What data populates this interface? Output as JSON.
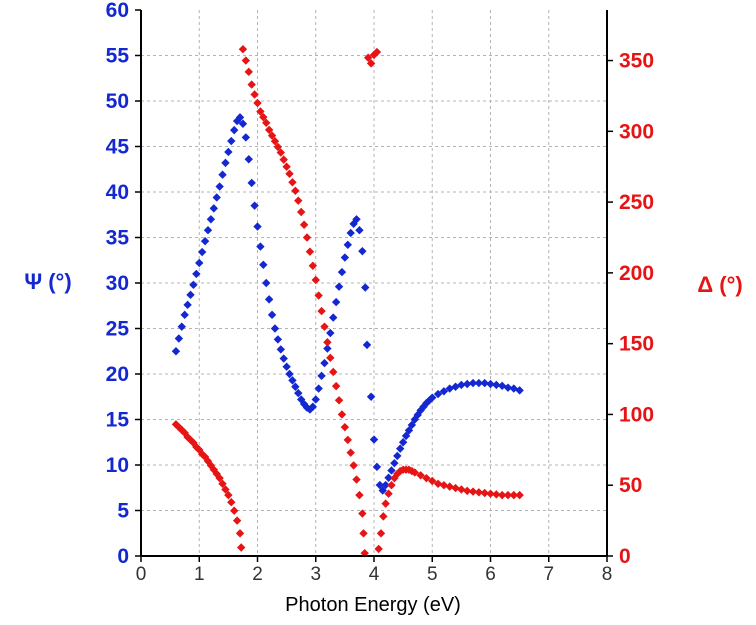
{
  "chart_data": {
    "type": "scatter",
    "xlabel": "Photon Energy (eV)",
    "ylabel_left": "Ψ (°)",
    "ylabel_right": "Δ (°)",
    "xlim": [
      0,
      8
    ],
    "ylim_left": [
      0,
      60
    ],
    "ylim_right": [
      0,
      385.7
    ],
    "x_ticks": [
      0,
      1,
      2,
      3,
      4,
      5,
      6,
      7,
      8
    ],
    "y_ticks_left": [
      0,
      5,
      10,
      15,
      20,
      25,
      30,
      35,
      40,
      45,
      50,
      55,
      60
    ],
    "y_ticks_right": [
      0,
      50,
      100,
      150,
      200,
      250,
      300,
      350
    ],
    "grid": true,
    "colors": {
      "psi": "#1428d2",
      "delta": "#e61414",
      "axis": "#000000",
      "grid": "#b4b4b4"
    },
    "series": [
      {
        "axis": "left",
        "color": "#1428d2",
        "points": [
          [
            0.6,
            22.5
          ],
          [
            0.65,
            23.9
          ],
          [
            0.7,
            25.2
          ],
          [
            0.75,
            26.5
          ],
          [
            0.8,
            27.6
          ],
          [
            0.85,
            28.7
          ],
          [
            0.9,
            29.8
          ],
          [
            0.95,
            31.0
          ],
          [
            1.0,
            32.2
          ],
          [
            1.05,
            33.4
          ],
          [
            1.1,
            34.6
          ],
          [
            1.15,
            35.8
          ],
          [
            1.2,
            37.0
          ],
          [
            1.25,
            38.2
          ],
          [
            1.3,
            39.4
          ],
          [
            1.35,
            40.6
          ],
          [
            1.4,
            41.9
          ],
          [
            1.45,
            43.2
          ],
          [
            1.5,
            44.4
          ],
          [
            1.55,
            45.6
          ],
          [
            1.6,
            46.8
          ],
          [
            1.65,
            47.8
          ],
          [
            1.7,
            48.2
          ],
          [
            1.75,
            47.5
          ],
          [
            1.8,
            46.0
          ],
          [
            1.85,
            43.6
          ],
          [
            1.9,
            41.0
          ],
          [
            1.95,
            38.5
          ],
          [
            2.0,
            36.2
          ],
          [
            2.05,
            34.0
          ],
          [
            2.1,
            32.0
          ],
          [
            2.15,
            30.0
          ],
          [
            2.2,
            28.2
          ],
          [
            2.25,
            26.5
          ],
          [
            2.3,
            25.0
          ],
          [
            2.35,
            23.8
          ],
          [
            2.4,
            22.7
          ],
          [
            2.45,
            21.7
          ],
          [
            2.5,
            20.8
          ],
          [
            2.55,
            20.0
          ],
          [
            2.6,
            19.3
          ],
          [
            2.65,
            18.6
          ],
          [
            2.7,
            17.9
          ],
          [
            2.75,
            17.2
          ],
          [
            2.8,
            16.7
          ],
          [
            2.85,
            16.3
          ],
          [
            2.9,
            16.1
          ],
          [
            2.95,
            16.4
          ],
          [
            3.0,
            17.2
          ],
          [
            3.05,
            18.4
          ],
          [
            3.1,
            19.8
          ],
          [
            3.15,
            21.2
          ],
          [
            3.2,
            22.8
          ],
          [
            3.25,
            24.5
          ],
          [
            3.3,
            26.2
          ],
          [
            3.35,
            27.9
          ],
          [
            3.4,
            29.6
          ],
          [
            3.45,
            31.2
          ],
          [
            3.5,
            32.8
          ],
          [
            3.55,
            34.2
          ],
          [
            3.6,
            35.5
          ],
          [
            3.65,
            36.5
          ],
          [
            3.7,
            37.0
          ],
          [
            3.75,
            35.8
          ],
          [
            3.8,
            33.5
          ],
          [
            3.85,
            29.5
          ],
          [
            3.88,
            23.2
          ],
          [
            3.95,
            17.5
          ],
          [
            4.0,
            12.8
          ],
          [
            4.05,
            9.8
          ],
          [
            4.1,
            7.8
          ],
          [
            4.15,
            7.2
          ],
          [
            4.2,
            7.8
          ],
          [
            4.25,
            8.6
          ],
          [
            4.3,
            9.4
          ],
          [
            4.35,
            10.2
          ],
          [
            4.4,
            11.0
          ],
          [
            4.45,
            11.8
          ],
          [
            4.5,
            12.5
          ],
          [
            4.55,
            13.2
          ],
          [
            4.6,
            13.8
          ],
          [
            4.65,
            14.4
          ],
          [
            4.7,
            15.0
          ],
          [
            4.75,
            15.5
          ],
          [
            4.8,
            16.0
          ],
          [
            4.85,
            16.4
          ],
          [
            4.9,
            16.8
          ],
          [
            4.95,
            17.1
          ],
          [
            5.0,
            17.4
          ],
          [
            5.1,
            17.8
          ],
          [
            5.2,
            18.1
          ],
          [
            5.3,
            18.4
          ],
          [
            5.4,
            18.6
          ],
          [
            5.5,
            18.8
          ],
          [
            5.6,
            18.9
          ],
          [
            5.7,
            19.0
          ],
          [
            5.8,
            19.0
          ],
          [
            5.9,
            19.0
          ],
          [
            6.0,
            18.9
          ],
          [
            6.1,
            18.8
          ],
          [
            6.2,
            18.7
          ],
          [
            6.3,
            18.5
          ],
          [
            6.4,
            18.4
          ],
          [
            6.5,
            18.2
          ]
        ]
      },
      {
        "axis": "right",
        "color": "#e61414",
        "points": [
          [
            0.6,
            93
          ],
          [
            0.65,
            91
          ],
          [
            0.7,
            89
          ],
          [
            0.75,
            87
          ],
          [
            0.8,
            84
          ],
          [
            0.85,
            82
          ],
          [
            0.9,
            80
          ],
          [
            0.95,
            77
          ],
          [
            1.0,
            75
          ],
          [
            1.05,
            72
          ],
          [
            1.1,
            70
          ],
          [
            1.15,
            67
          ],
          [
            1.2,
            64
          ],
          [
            1.25,
            61
          ],
          [
            1.3,
            58
          ],
          [
            1.35,
            55
          ],
          [
            1.4,
            51
          ],
          [
            1.45,
            47
          ],
          [
            1.5,
            43
          ],
          [
            1.55,
            38
          ],
          [
            1.6,
            32
          ],
          [
            1.65,
            25
          ],
          [
            1.7,
            16
          ],
          [
            1.72,
            6
          ],
          [
            1.75,
            358
          ],
          [
            1.8,
            350
          ],
          [
            1.85,
            342
          ],
          [
            1.9,
            333
          ],
          [
            1.95,
            326
          ],
          [
            2.0,
            320
          ],
          [
            2.05,
            314
          ],
          [
            2.1,
            310
          ],
          [
            2.15,
            306
          ],
          [
            2.2,
            301
          ],
          [
            2.25,
            297
          ],
          [
            2.3,
            293
          ],
          [
            2.35,
            289
          ],
          [
            2.4,
            285
          ],
          [
            2.45,
            280
          ],
          [
            2.5,
            275
          ],
          [
            2.55,
            270
          ],
          [
            2.6,
            264
          ],
          [
            2.65,
            258
          ],
          [
            2.7,
            251
          ],
          [
            2.75,
            243
          ],
          [
            2.8,
            234
          ],
          [
            2.85,
            225
          ],
          [
            2.9,
            215
          ],
          [
            2.95,
            205
          ],
          [
            3.0,
            195
          ],
          [
            3.05,
            184
          ],
          [
            3.1,
            173
          ],
          [
            3.15,
            162
          ],
          [
            3.2,
            151
          ],
          [
            3.25,
            140
          ],
          [
            3.3,
            130
          ],
          [
            3.35,
            120
          ],
          [
            3.4,
            110
          ],
          [
            3.45,
            100
          ],
          [
            3.5,
            91
          ],
          [
            3.55,
            82
          ],
          [
            3.6,
            73
          ],
          [
            3.65,
            64
          ],
          [
            3.7,
            54
          ],
          [
            3.75,
            43
          ],
          [
            3.8,
            30
          ],
          [
            3.82,
            16
          ],
          [
            3.84,
            2
          ],
          [
            3.9,
            352
          ],
          [
            3.95,
            348
          ],
          [
            4.0,
            354
          ],
          [
            4.05,
            356
          ],
          [
            4.08,
            5
          ],
          [
            4.12,
            16
          ],
          [
            4.16,
            28
          ],
          [
            4.2,
            37
          ],
          [
            4.25,
            44
          ],
          [
            4.3,
            50
          ],
          [
            4.35,
            55
          ],
          [
            4.4,
            58
          ],
          [
            4.45,
            60
          ],
          [
            4.5,
            61
          ],
          [
            4.55,
            61
          ],
          [
            4.6,
            61
          ],
          [
            4.65,
            60
          ],
          [
            4.7,
            59
          ],
          [
            4.8,
            57
          ],
          [
            4.9,
            55
          ],
          [
            5.0,
            53
          ],
          [
            5.1,
            51
          ],
          [
            5.2,
            50
          ],
          [
            5.3,
            49
          ],
          [
            5.4,
            48
          ],
          [
            5.5,
            47
          ],
          [
            5.6,
            46
          ],
          [
            5.7,
            45.5
          ],
          [
            5.8,
            45
          ],
          [
            5.9,
            44.5
          ],
          [
            6.0,
            44
          ],
          [
            6.1,
            43.5
          ],
          [
            6.2,
            43
          ],
          [
            6.3,
            43
          ],
          [
            6.4,
            43
          ],
          [
            6.5,
            43
          ]
        ]
      }
    ]
  }
}
